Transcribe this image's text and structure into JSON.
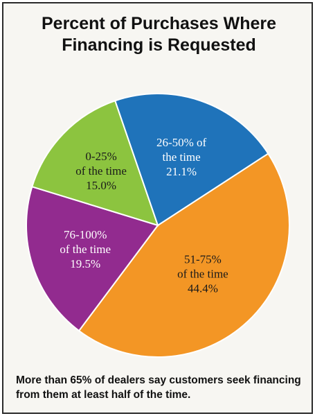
{
  "chart_data": {
    "type": "pie",
    "title_lines": [
      "Percent of Purchases Where",
      "Financing is Requested"
    ],
    "slices": [
      {
        "label_lines": [
          "51-75%",
          "of the time",
          "44.4%"
        ],
        "value": 44.4,
        "color": "#f39625",
        "text_color": "#1a1a1a"
      },
      {
        "label_lines": [
          "76-100%",
          "of the time",
          "19.5%"
        ],
        "value": 19.5,
        "color": "#922b8f",
        "text_color": "#ffffff"
      },
      {
        "label_lines": [
          "0-25%",
          "of the time",
          "15.0%"
        ],
        "value": 15.0,
        "color": "#8cc43f",
        "text_color": "#1a1a1a"
      },
      {
        "label_lines": [
          "26-50% of",
          "the time",
          "21.1%"
        ],
        "value": 21.1,
        "color": "#1f73ba",
        "text_color": "#ffffff"
      }
    ],
    "start_angle_deg": -33
  },
  "caption": "More than 65% of dealers say customers seek financing from them at least half of the time."
}
